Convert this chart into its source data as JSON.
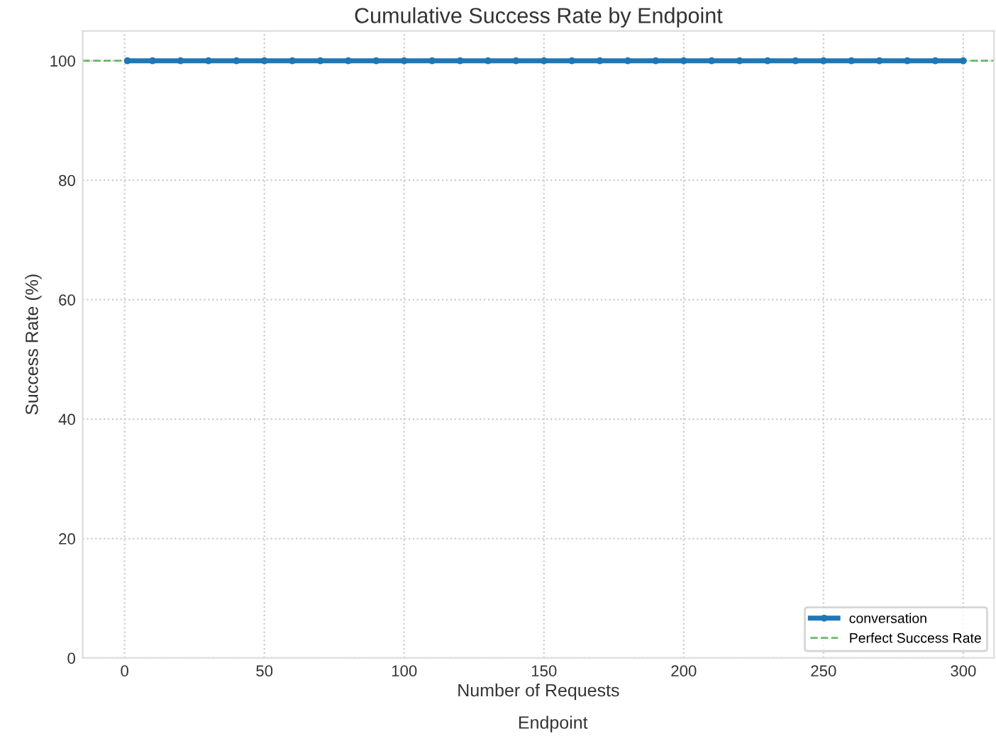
{
  "chart_data": {
    "type": "line",
    "title": "Cumulative Success Rate by Endpoint",
    "xlabel": "Number of Requests",
    "ylabel": "Success Rate (%)",
    "series": [
      {
        "name": "conversation",
        "color": "#1f77b4",
        "x": [
          1,
          10,
          20,
          30,
          40,
          50,
          60,
          70,
          80,
          90,
          100,
          110,
          120,
          130,
          140,
          150,
          160,
          170,
          180,
          190,
          200,
          210,
          220,
          230,
          240,
          250,
          260,
          270,
          280,
          290,
          300
        ],
        "values": [
          100,
          100,
          100,
          100,
          100,
          100,
          100,
          100,
          100,
          100,
          100,
          100,
          100,
          100,
          100,
          100,
          100,
          100,
          100,
          100,
          100,
          100,
          100,
          100,
          100,
          100,
          100,
          100,
          100,
          100,
          100
        ]
      }
    ],
    "ref_lines": [
      {
        "axis": "y",
        "value": 100,
        "label": "Perfect Success Rate",
        "color": "#2ca02c",
        "line_style": "dashed"
      }
    ],
    "xlim": [
      -15,
      311
    ],
    "ylim": [
      0,
      105
    ],
    "xticks": [
      0,
      50,
      100,
      150,
      200,
      250,
      300
    ],
    "yticks": [
      0,
      20,
      40,
      60,
      80,
      100
    ],
    "grid": true,
    "legend": "bottom right",
    "marker": "circle",
    "line_style": "solid",
    "annotations": [
      "Endpoint"
    ]
  }
}
